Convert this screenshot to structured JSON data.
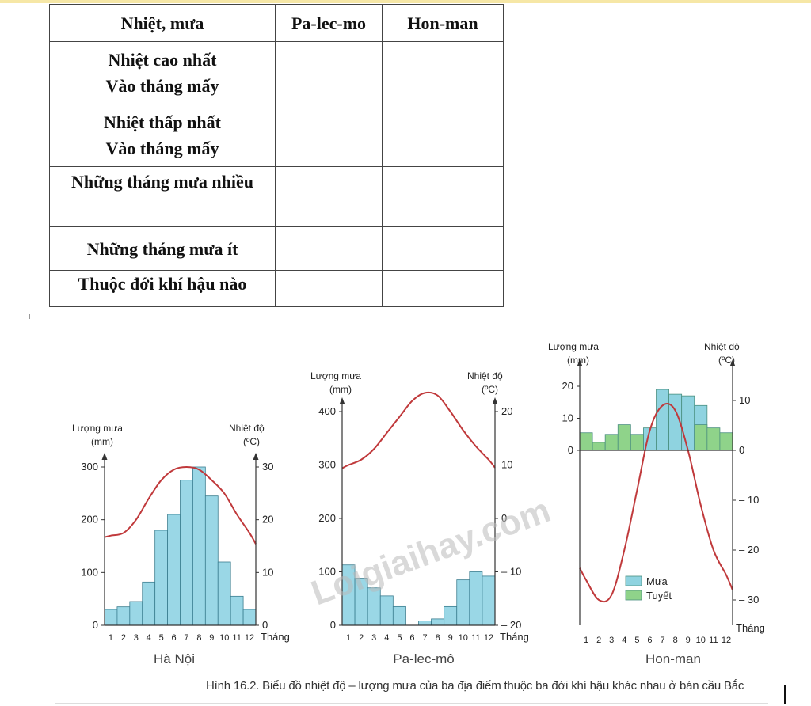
{
  "table": {
    "headers": [
      "Nhiệt, mưa",
      "Pa-lec-mo",
      "Hon-man"
    ],
    "rows": [
      {
        "label": [
          "Nhiệt cao nhất",
          "Vào tháng mấy"
        ]
      },
      {
        "label": [
          "Nhiệt thấp  nhất",
          "Vào tháng mấy"
        ]
      },
      {
        "label": [
          "Những tháng mưa nhiều"
        ]
      },
      {
        "label": [
          "Những tháng mưa ít"
        ]
      },
      {
        "label": [
          "Thuộc đới khí hậu nào"
        ]
      }
    ]
  },
  "chart_data": [
    {
      "type": "bar",
      "title": "Hà Nội",
      "ylabel_left": "Lượng mưa (mm)",
      "ylabel_right": "Nhiệt độ (ºC)",
      "xlabel": "Tháng",
      "x": [
        1,
        2,
        3,
        4,
        5,
        6,
        7,
        8,
        9,
        10,
        11,
        12
      ],
      "rain_ylim": [
        0,
        300
      ],
      "rain_ticks": [
        0,
        100,
        200,
        300
      ],
      "temp_ylim": [
        0,
        30
      ],
      "temp_ticks": [
        0,
        10,
        20,
        30
      ],
      "rain": [
        30,
        35,
        45,
        82,
        180,
        210,
        275,
        300,
        245,
        120,
        55,
        30
      ],
      "temp": [
        17,
        17.5,
        20,
        24,
        27.5,
        29.5,
        30,
        29.5,
        27.5,
        25,
        21,
        17.5
      ]
    },
    {
      "type": "bar",
      "title": "Pa-lec-mô",
      "ylabel_left": "Lượng mưa (mm)",
      "ylabel_right": "Nhiệt độ (ºC)",
      "xlabel": "Tháng",
      "x": [
        1,
        2,
        3,
        4,
        5,
        6,
        7,
        8,
        9,
        10,
        11,
        12
      ],
      "rain_ylim": [
        0,
        400
      ],
      "rain_ticks": [
        0,
        100,
        200,
        300,
        400
      ],
      "temp_ylim": [
        -20,
        20
      ],
      "temp_ticks": [
        -20,
        -10,
        0,
        10,
        20
      ],
      "rain": [
        113,
        88,
        70,
        55,
        35,
        0,
        8,
        12,
        35,
        85,
        100,
        92
      ],
      "temp": [
        10,
        11,
        13,
        16,
        19,
        22,
        23.5,
        23,
        20,
        16.5,
        13.5,
        11
      ]
    },
    {
      "type": "bar",
      "title": "Hon-man",
      "ylabel_left": "Lượng mưa (mm)",
      "ylabel_right": "Nhiệt độ (ºC)",
      "xlabel": "Tháng",
      "x": [
        1,
        2,
        3,
        4,
        5,
        6,
        7,
        8,
        9,
        10,
        11,
        12
      ],
      "rain_ylim": [
        0,
        20
      ],
      "rain_ticks": [
        0,
        10,
        20
      ],
      "temp_ylim": [
        -35,
        15
      ],
      "temp_ticks": [
        -30,
        -20,
        -10,
        0,
        10
      ],
      "series": [
        {
          "name": "Mưa",
          "color": "#8fd3e0",
          "values": [
            0,
            0,
            0,
            0,
            0,
            7,
            19,
            17.5,
            17,
            14,
            0,
            0
          ]
        },
        {
          "name": "Tuyết",
          "color": "#8fd38a",
          "values": [
            5.5,
            2.5,
            5,
            8,
            5,
            0,
            0,
            0,
            0,
            8,
            7,
            5.5
          ]
        }
      ],
      "temp": [
        -26,
        -30,
        -29,
        -20,
        -8,
        4,
        9,
        8,
        0,
        -11,
        -20,
        -25
      ]
    }
  ],
  "watermark": "Loigiaihay.com",
  "caption": "Hình 16.2. Biểu đồ nhiệt độ – lượng mưa của ba địa điểm thuộc ba đới khí hậu khác nhau ở bán cầu Bắc",
  "colors": {
    "rain_bar": "#9ad7e6",
    "snow_bar": "#8fd38a",
    "temp_line": "#c0393b",
    "bar_stroke": "#3a7d8f"
  }
}
